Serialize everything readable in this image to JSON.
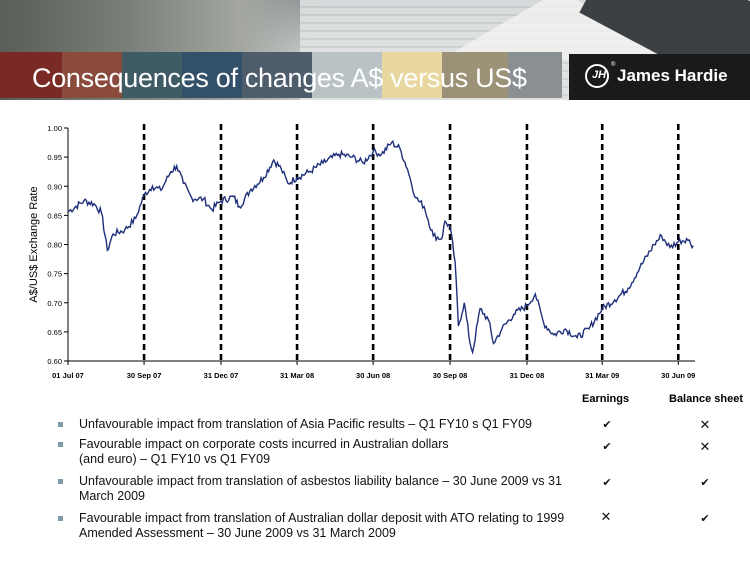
{
  "slide": {
    "title": "Consequences of changes  A$ versus US$",
    "logo_text": "James Hardie",
    "logo_registered": "®"
  },
  "chart_data": {
    "type": "line",
    "ylabel": "A$/US$ Exchange Rate",
    "ylim": [
      0.6,
      1.0
    ],
    "yticks": [
      "0.60",
      "0.65",
      "0.70",
      "0.75",
      "0.80",
      "0.85",
      "0.90",
      "0.95",
      "1.00"
    ],
    "xticks": [
      "01 Jul 07",
      "30 Sep 07",
      "31 Dec 07",
      "31 Mar 08",
      "30 Jun 08",
      "30 Sep 08",
      "31 Dec 08",
      "31 Mar 09",
      "30 Jun 09"
    ],
    "dashed_markers_at_ticks": [
      1,
      2,
      3,
      4,
      5,
      6,
      7,
      8
    ],
    "color": "#1f2f7a",
    "series": [
      {
        "points": [
          [
            "2007-07-01",
            0.856
          ],
          [
            "2007-07-20",
            0.875
          ],
          [
            "2007-08-01",
            0.87
          ],
          [
            "2007-08-10",
            0.855
          ],
          [
            "2007-08-17",
            0.79
          ],
          [
            "2007-08-24",
            0.818
          ],
          [
            "2007-09-07",
            0.825
          ],
          [
            "2007-09-20",
            0.845
          ],
          [
            "2007-09-30",
            0.885
          ],
          [
            "2007-10-10",
            0.9
          ],
          [
            "2007-10-20",
            0.893
          ],
          [
            "2007-11-01",
            0.925
          ],
          [
            "2007-11-08",
            0.935
          ],
          [
            "2007-11-16",
            0.905
          ],
          [
            "2007-11-26",
            0.88
          ],
          [
            "2007-12-10",
            0.878
          ],
          [
            "2007-12-20",
            0.86
          ],
          [
            "2007-12-31",
            0.875
          ],
          [
            "2008-01-15",
            0.882
          ],
          [
            "2008-01-22",
            0.865
          ],
          [
            "2008-02-05",
            0.895
          ],
          [
            "2008-02-20",
            0.915
          ],
          [
            "2008-03-03",
            0.945
          ],
          [
            "2008-03-12",
            0.93
          ],
          [
            "2008-03-20",
            0.905
          ],
          [
            "2008-03-31",
            0.915
          ],
          [
            "2008-04-15",
            0.925
          ],
          [
            "2008-05-01",
            0.94
          ],
          [
            "2008-05-20",
            0.955
          ],
          [
            "2008-06-05",
            0.95
          ],
          [
            "2008-06-18",
            0.94
          ],
          [
            "2008-06-30",
            0.96
          ],
          [
            "2008-07-10",
            0.955
          ],
          [
            "2008-07-22",
            0.975
          ],
          [
            "2008-08-01",
            0.965
          ],
          [
            "2008-08-10",
            0.93
          ],
          [
            "2008-08-20",
            0.88
          ],
          [
            "2008-08-30",
            0.865
          ],
          [
            "2008-09-10",
            0.815
          ],
          [
            "2008-09-20",
            0.81
          ],
          [
            "2008-09-24",
            0.84
          ],
          [
            "2008-09-30",
            0.83
          ],
          [
            "2008-10-06",
            0.77
          ],
          [
            "2008-10-10",
            0.66
          ],
          [
            "2008-10-17",
            0.7
          ],
          [
            "2008-10-24",
            0.63
          ],
          [
            "2008-10-27",
            0.615
          ],
          [
            "2008-11-05",
            0.69
          ],
          [
            "2008-11-15",
            0.67
          ],
          [
            "2008-11-21",
            0.63
          ],
          [
            "2008-12-01",
            0.655
          ],
          [
            "2008-12-15",
            0.68
          ],
          [
            "2008-12-31",
            0.695
          ],
          [
            "2009-01-10",
            0.715
          ],
          [
            "2009-01-20",
            0.665
          ],
          [
            "2009-02-01",
            0.645
          ],
          [
            "2009-02-15",
            0.655
          ],
          [
            "2009-03-01",
            0.64
          ],
          [
            "2009-03-15",
            0.655
          ],
          [
            "2009-03-31",
            0.69
          ],
          [
            "2009-04-15",
            0.705
          ],
          [
            "2009-05-01",
            0.725
          ],
          [
            "2009-05-15",
            0.76
          ],
          [
            "2009-06-01",
            0.8
          ],
          [
            "2009-06-10",
            0.815
          ],
          [
            "2009-06-20",
            0.795
          ],
          [
            "2009-06-30",
            0.805
          ],
          [
            "2009-07-10",
            0.81
          ],
          [
            "2009-07-18",
            0.798
          ]
        ]
      }
    ]
  },
  "impact_table": {
    "headers": [
      "Earnings",
      "Balance sheet"
    ],
    "rows": [
      {
        "text": "Unfavourable impact from translation of Asia Pacific results – Q1 FY10 s Q1 FY09",
        "earnings": "✔",
        "balance_sheet": "✕"
      },
      {
        "text": "Favourable impact on corporate costs incurred in Australian dollars",
        "text2": "(and euro) – Q1 FY10 vs Q1 FY09",
        "earnings": "✔",
        "balance_sheet": "✕"
      },
      {
        "text": "Unfavourable impact from translation of asbestos liability balance – 30 June 2009 vs 31",
        "text2": "March 2009",
        "earnings": "✔",
        "balance_sheet": "✔"
      },
      {
        "text": "Favourable impact from translation of Australian dollar deposit with ATO relating to 1999",
        "text2": "Amended Assessment – 30 June 2009 vs 31 March 2009",
        "earnings": "✕",
        "balance_sheet": "✔"
      }
    ]
  }
}
